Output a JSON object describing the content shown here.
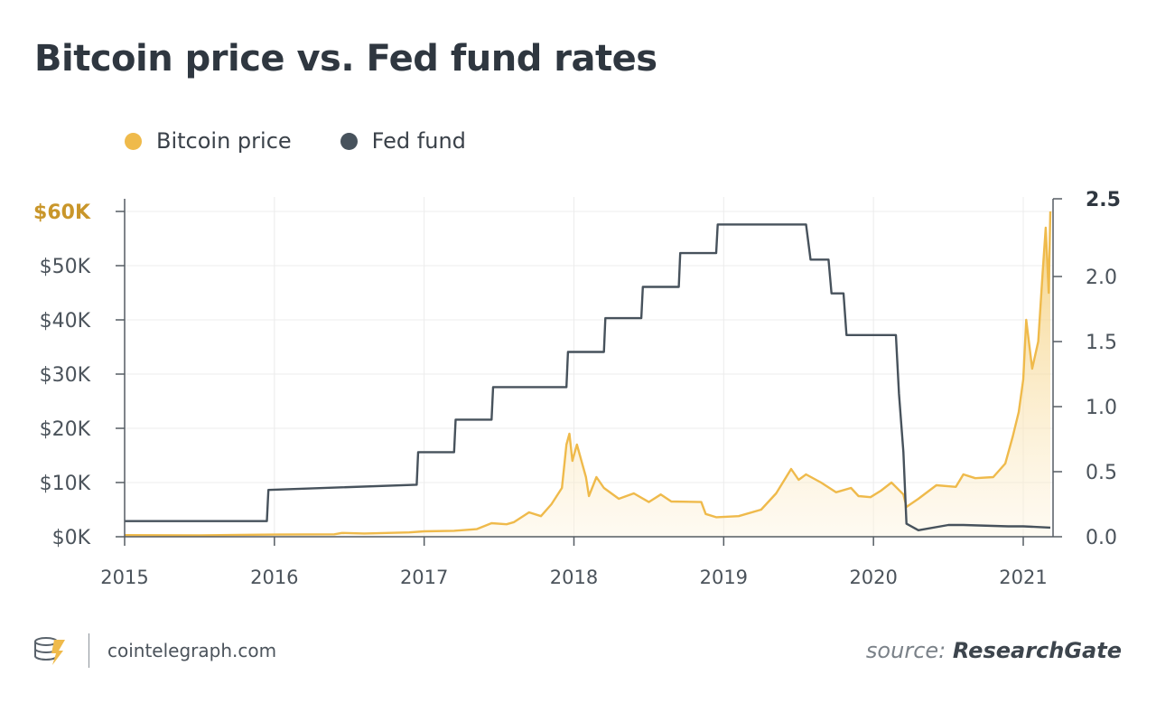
{
  "title": "Bitcoin price vs. Fed fund rates",
  "legend": {
    "bitcoin": {
      "label": "Bitcoin price",
      "color": "#efba4b"
    },
    "fed": {
      "label": "Fed fund",
      "color": "#47525c"
    }
  },
  "footer": {
    "site": "cointelegraph.com",
    "logo_icon": "cointelegraph-coin-icon",
    "source_prefix": "source:",
    "source_name": "ResearchGate"
  },
  "chart_data": {
    "type": "line",
    "x_axis": {
      "ticks": [
        "2015",
        "2016",
        "2017",
        "2018",
        "2019",
        "2020",
        "2021"
      ],
      "range": [
        2015.0,
        2021.2
      ]
    },
    "y_left": {
      "ticks": [
        "$0K",
        "$10K",
        "$20K",
        "$30K",
        "$40K",
        "$50K",
        "$60K"
      ],
      "range": [
        0,
        60000
      ],
      "highlight_tick": "$60K",
      "highlight_color": "#c9962a"
    },
    "y_right": {
      "ticks": [
        "0.0",
        "0.5",
        "1.0",
        "1.5",
        "2.0",
        "2.5"
      ],
      "range": [
        0,
        2.5
      ]
    },
    "grid": true,
    "series": [
      {
        "name": "Bitcoin price",
        "axis": "left",
        "style": "area",
        "color": "#efba4b",
        "points": [
          [
            2015.0,
            300
          ],
          [
            2015.5,
            260
          ],
          [
            2016.0,
            400
          ],
          [
            2016.4,
            450
          ],
          [
            2016.45,
            700
          ],
          [
            2016.6,
            600
          ],
          [
            2016.9,
            800
          ],
          [
            2017.0,
            1000
          ],
          [
            2017.2,
            1100
          ],
          [
            2017.35,
            1400
          ],
          [
            2017.45,
            2500
          ],
          [
            2017.55,
            2300
          ],
          [
            2017.6,
            2700
          ],
          [
            2017.7,
            4500
          ],
          [
            2017.78,
            3800
          ],
          [
            2017.85,
            6000
          ],
          [
            2017.92,
            9000
          ],
          [
            2017.95,
            17000
          ],
          [
            2017.97,
            19000
          ],
          [
            2017.99,
            14000
          ],
          [
            2018.02,
            17000
          ],
          [
            2018.08,
            11000
          ],
          [
            2018.1,
            7500
          ],
          [
            2018.15,
            11000
          ],
          [
            2018.2,
            9000
          ],
          [
            2018.3,
            7000
          ],
          [
            2018.4,
            8000
          ],
          [
            2018.5,
            6400
          ],
          [
            2018.58,
            7800
          ],
          [
            2018.65,
            6500
          ],
          [
            2018.85,
            6400
          ],
          [
            2018.88,
            4200
          ],
          [
            2018.95,
            3600
          ],
          [
            2019.1,
            3800
          ],
          [
            2019.25,
            5000
          ],
          [
            2019.35,
            8000
          ],
          [
            2019.45,
            12500
          ],
          [
            2019.5,
            10500
          ],
          [
            2019.55,
            11500
          ],
          [
            2019.65,
            10000
          ],
          [
            2019.75,
            8200
          ],
          [
            2019.85,
            9000
          ],
          [
            2019.9,
            7500
          ],
          [
            2019.98,
            7300
          ],
          [
            2020.05,
            8500
          ],
          [
            2020.12,
            10000
          ],
          [
            2020.2,
            7800
          ],
          [
            2020.22,
            5500
          ],
          [
            2020.3,
            7000
          ],
          [
            2020.42,
            9500
          ],
          [
            2020.55,
            9200
          ],
          [
            2020.6,
            11500
          ],
          [
            2020.68,
            10800
          ],
          [
            2020.8,
            11000
          ],
          [
            2020.88,
            13500
          ],
          [
            2020.93,
            18500
          ],
          [
            2020.97,
            23000
          ],
          [
            2021.0,
            29000
          ],
          [
            2021.02,
            40000
          ],
          [
            2021.06,
            31000
          ],
          [
            2021.1,
            36000
          ],
          [
            2021.13,
            49000
          ],
          [
            2021.15,
            57000
          ],
          [
            2021.17,
            45000
          ],
          [
            2021.2,
            60000
          ]
        ]
      },
      {
        "name": "Fed fund",
        "axis": "right",
        "style": "line",
        "color": "#47525c",
        "points": [
          [
            2015.0,
            0.12
          ],
          [
            2015.95,
            0.12
          ],
          [
            2015.96,
            0.36
          ],
          [
            2016.95,
            0.4
          ],
          [
            2016.96,
            0.65
          ],
          [
            2017.2,
            0.65
          ],
          [
            2017.21,
            0.9
          ],
          [
            2017.45,
            0.9
          ],
          [
            2017.46,
            1.15
          ],
          [
            2017.95,
            1.15
          ],
          [
            2017.96,
            1.42
          ],
          [
            2018.2,
            1.42
          ],
          [
            2018.21,
            1.68
          ],
          [
            2018.45,
            1.68
          ],
          [
            2018.46,
            1.92
          ],
          [
            2018.7,
            1.92
          ],
          [
            2018.71,
            2.18
          ],
          [
            2018.95,
            2.18
          ],
          [
            2018.96,
            2.4
          ],
          [
            2019.5,
            2.4
          ],
          [
            2019.55,
            2.4
          ],
          [
            2019.58,
            2.13
          ],
          [
            2019.7,
            2.13
          ],
          [
            2019.72,
            1.87
          ],
          [
            2019.8,
            1.87
          ],
          [
            2019.82,
            1.55
          ],
          [
            2020.15,
            1.55
          ],
          [
            2020.17,
            1.1
          ],
          [
            2020.2,
            0.65
          ],
          [
            2020.22,
            0.1
          ],
          [
            2020.3,
            0.05
          ],
          [
            2020.5,
            0.09
          ],
          [
            2020.6,
            0.09
          ],
          [
            2020.9,
            0.08
          ],
          [
            2021.0,
            0.08
          ],
          [
            2021.2,
            0.07
          ]
        ]
      }
    ]
  }
}
